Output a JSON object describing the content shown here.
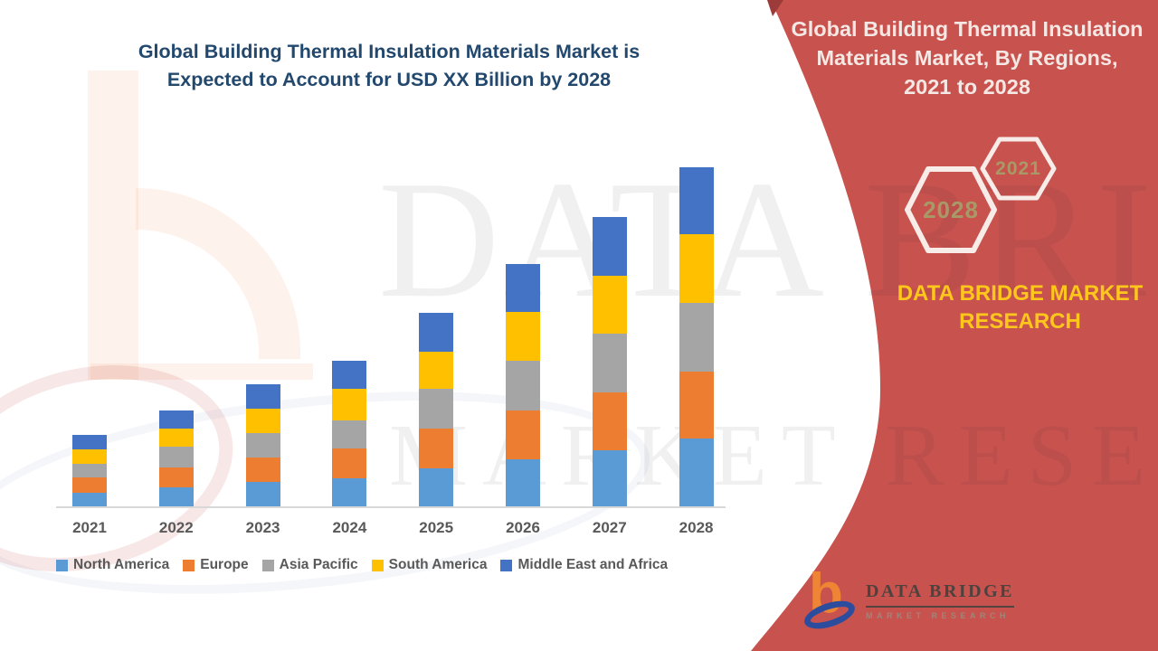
{
  "left_section": {
    "title_lines": [
      "Global Building Thermal Insulation Materials Market is",
      "Expected to Account for USD XX Billion by 2028"
    ],
    "title_color": "#22486E"
  },
  "chart_data": {
    "type": "bar",
    "stacked": true,
    "title": "Global Building Thermal Insulation Materials Market is Expected to Account for USD XX Billion by 2028",
    "xlabel": "",
    "ylabel": "",
    "y_axis_visible": false,
    "grid": false,
    "legend_position": "bottom",
    "units": "relative height units (no value axis shown; actual figures undisclosed as USD XX Billion)",
    "categories": [
      "2021",
      "2022",
      "2023",
      "2024",
      "2025",
      "2026",
      "2027",
      "2028"
    ],
    "series": [
      {
        "name": "North America",
        "color": "#5B9BD5",
        "values": [
          15,
          21,
          27,
          31,
          42,
          52,
          62,
          75
        ]
      },
      {
        "name": "Europe",
        "color": "#ED7D31",
        "values": [
          17,
          22,
          27,
          33,
          44,
          54,
          64,
          74
        ]
      },
      {
        "name": "Asia Pacific",
        "color": "#A5A5A5",
        "values": [
          15,
          23,
          27,
          31,
          44,
          55,
          65,
          76
        ]
      },
      {
        "name": "South America",
        "color": "#FFC000",
        "values": [
          16,
          20,
          27,
          35,
          41,
          54,
          64,
          76
        ]
      },
      {
        "name": "Middle East and Africa",
        "color": "#4472C4",
        "values": [
          16,
          20,
          27,
          31,
          43,
          53,
          65,
          74
        ]
      }
    ],
    "axis_label_color": "#595959"
  },
  "right_panel": {
    "bg_color": "#C8524E",
    "fold_color": "#9C3B39",
    "title_lines": [
      "Global Building Thermal Insulation",
      "Materials Market, By Regions,",
      "2021 to 2028"
    ],
    "hexagons": [
      {
        "label": "2021"
      },
      {
        "label": "2028"
      }
    ],
    "hex_label_color": "#A89A67",
    "brand_lines": [
      "DATA BRIDGE MARKET",
      "RESEARCH"
    ],
    "brand_color": "#FFC71C",
    "logo": {
      "name": "DATA BRIDGE",
      "tagline": "MARKET RESEARCH"
    }
  },
  "watermark": {
    "line1": "DATA BRIDGE",
    "line2": "MARKET RESEARCH"
  }
}
